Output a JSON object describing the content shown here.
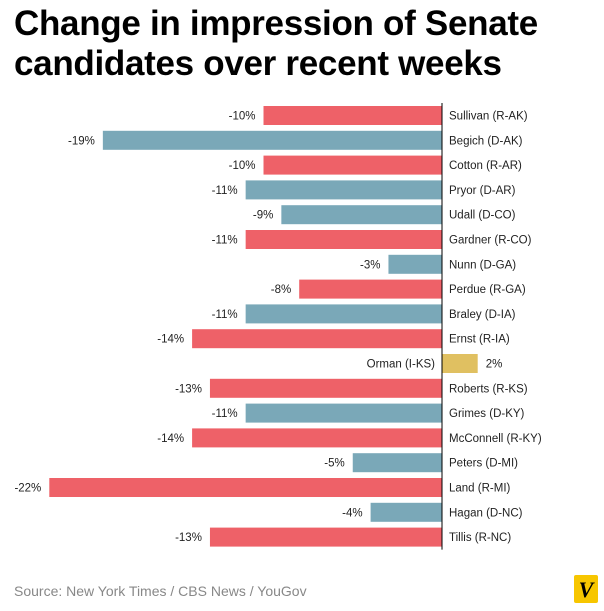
{
  "title": "Change in impression of Senate candidates over recent weeks",
  "source": "Source: New York Times / CBS News / YouGov",
  "logo": {
    "letter": "V",
    "colors": {
      "bg": "#f7c600",
      "fg": "#000000"
    }
  },
  "colors": {
    "Republican": "#ee6168",
    "Democrat": "#7aa8b8",
    "Independent": "#e0c061"
  },
  "chart_data": {
    "type": "bar",
    "orientation": "horizontal",
    "title": "Change in impression of Senate candidates over recent weeks",
    "xlabel": "",
    "ylabel": "",
    "unit": "%",
    "xlim": [
      -22,
      2
    ],
    "grid": false,
    "legend": "none",
    "categories": [
      "Sullivan (R-AK)",
      "Begich (D-AK)",
      "Cotton (R-AR)",
      "Pryor (D-AR)",
      "Udall (D-CO)",
      "Gardner (R-CO)",
      "Nunn (D-GA)",
      "Perdue (R-GA)",
      "Braley (D-IA)",
      "Ernst (R-IA)",
      "Orman (I-KS)",
      "Roberts (R-KS)",
      "Grimes (D-KY)",
      "McConnell (R-KY)",
      "Peters (D-MI)",
      "Land (R-MI)",
      "Hagan (D-NC)",
      "Tillis (R-NC)"
    ],
    "values": [
      -10,
      -19,
      -10,
      -11,
      -9,
      -11,
      -3,
      -8,
      -11,
      -14,
      2,
      -13,
      -11,
      -14,
      -5,
      -22,
      -4,
      -13
    ],
    "labels": [
      "-10%",
      "-19%",
      "-10%",
      "-11%",
      "-9%",
      "-11%",
      "-3%",
      "-8%",
      "-11%",
      "-14%",
      "2%",
      "-13%",
      "-11%",
      "-14%",
      "-5%",
      "-22%",
      "-4%",
      "-13%"
    ],
    "party": [
      "Republican",
      "Democrat",
      "Republican",
      "Democrat",
      "Democrat",
      "Republican",
      "Democrat",
      "Republican",
      "Democrat",
      "Republican",
      "Independent",
      "Republican",
      "Democrat",
      "Republican",
      "Democrat",
      "Republican",
      "Democrat",
      "Republican"
    ]
  }
}
